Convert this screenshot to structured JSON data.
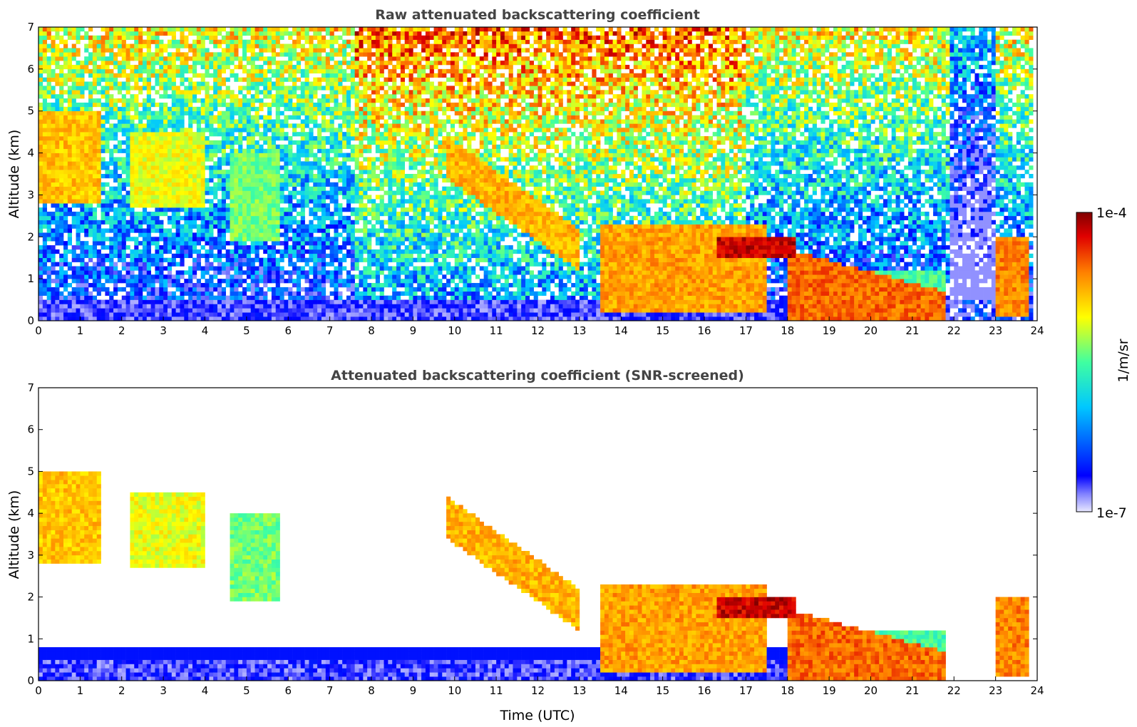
{
  "chart_data": [
    {
      "type": "heatmap",
      "title": "Raw attenuated backscattering coefficient",
      "xlabel": "",
      "ylabel": "Altitude (km)",
      "xlim": [
        0,
        24
      ],
      "ylim": [
        0,
        7
      ],
      "x_ticks": [
        "0",
        "1",
        "2",
        "3",
        "4",
        "5",
        "6",
        "7",
        "8",
        "9",
        "10",
        "11",
        "12",
        "13",
        "14",
        "15",
        "16",
        "17",
        "18",
        "19",
        "20",
        "21",
        "22",
        "23",
        "24"
      ],
      "y_ticks": [
        "0",
        "1",
        "2",
        "3",
        "4",
        "5",
        "6",
        "7"
      ],
      "layers": [
        {
          "feature": "cirrus fall streaks",
          "time_start": 0.0,
          "time_end": 1.5,
          "alt_bottom": 2.8,
          "alt_top": 5.0,
          "level": 0.78
        },
        {
          "feature": "cirrus fall streaks",
          "time_start": 2.2,
          "time_end": 4.0,
          "alt_bottom": 2.7,
          "alt_top": 4.5,
          "level": 0.7
        },
        {
          "feature": "cirrus fall streaks",
          "time_start": 4.6,
          "time_end": 5.8,
          "alt_bottom": 1.9,
          "alt_top": 4.0,
          "level": 0.6
        },
        {
          "feature": "descending cirrus",
          "time_start": 9.8,
          "time_end": 13.0,
          "alt_bottom": 1.6,
          "alt_top": 4.4,
          "level": 0.8
        },
        {
          "feature": "mid-level cloud",
          "time_start": 13.5,
          "time_end": 17.5,
          "alt_bottom": 0.2,
          "alt_top": 2.3,
          "level": 0.82
        },
        {
          "feature": "thin dense layer",
          "time_start": 16.3,
          "time_end": 18.2,
          "alt_bottom": 1.5,
          "alt_top": 2.0,
          "level": 1.0
        },
        {
          "feature": "descending layer",
          "time_start": 18.0,
          "time_end": 21.8,
          "alt_bottom": 0.0,
          "alt_top": 1.7,
          "level": 0.88
        },
        {
          "feature": "low cloud",
          "time_start": 19.4,
          "time_end": 21.8,
          "alt_bottom": 0.1,
          "alt_top": 1.2,
          "level": 0.55
        },
        {
          "feature": "low cloud",
          "time_start": 23.0,
          "time_end": 23.8,
          "alt_bottom": 0.1,
          "alt_top": 2.0,
          "level": 0.85
        },
        {
          "feature": "boundary layer",
          "time_start": 0.0,
          "time_end": 18.5,
          "alt_bottom": 0.0,
          "alt_top": 0.5,
          "level": 0.15
        }
      ]
    },
    {
      "type": "heatmap",
      "title": "Attenuated backscattering coefficient (SNR-screened)",
      "xlabel": "Time (UTC)",
      "ylabel": "Altitude (km)",
      "xlim": [
        0,
        24
      ],
      "ylim": [
        0,
        7
      ],
      "x_ticks": [
        "0",
        "1",
        "2",
        "3",
        "4",
        "5",
        "6",
        "7",
        "8",
        "9",
        "10",
        "11",
        "12",
        "13",
        "14",
        "15",
        "16",
        "17",
        "18",
        "19",
        "20",
        "21",
        "22",
        "23",
        "24"
      ],
      "y_ticks": [
        "0",
        "1",
        "2",
        "3",
        "4",
        "5",
        "6",
        "7"
      ],
      "screened": true
    }
  ],
  "colorbar": {
    "label": "1/m/sr",
    "max_label": "1e-4",
    "min_label": "1e-7",
    "colormap": "jet",
    "colors": [
      "#e8e8ff",
      "#0000ff",
      "#00c8ff",
      "#40ffa0",
      "#ffff00",
      "#ff8000",
      "#e00000",
      "#800000"
    ]
  }
}
